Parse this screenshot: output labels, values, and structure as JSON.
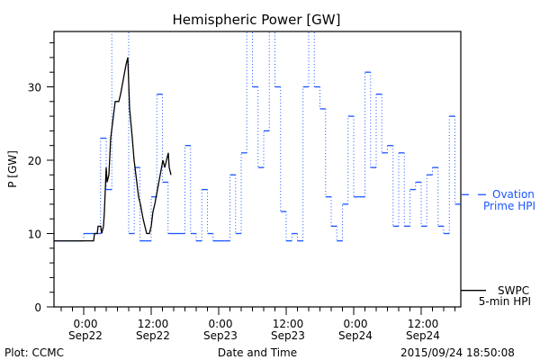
{
  "chart_data": {
    "type": "line",
    "title": "Hemispheric Power [GW]",
    "xlabel": "Date and Time",
    "ylabel": "P [GW]",
    "x_units": "hours since 2015-09-22 00:00",
    "xlim": [
      -5.6,
      67
    ],
    "ylim": [
      0,
      37.5
    ],
    "grid": false,
    "y_ticks": [
      0,
      10,
      20,
      30
    ],
    "y_minor_step": 2,
    "x_ticks": [
      {
        "hour": 0,
        "time": "0:00",
        "date": "Sep22"
      },
      {
        "hour": 12,
        "time": "12:00",
        "date": "Sep22"
      },
      {
        "hour": 24,
        "time": "0:00",
        "date": "Sep23"
      },
      {
        "hour": 36,
        "time": "12:00",
        "date": "Sep23"
      },
      {
        "hour": 48,
        "time": "0:00",
        "date": "Sep24"
      },
      {
        "hour": 60,
        "time": "12:00",
        "date": "Sep24"
      }
    ],
    "x_minor_step": 2,
    "series": [
      {
        "name": "Ovation Prime HPI",
        "legend": [
          "Ovation",
          "Prime HPI"
        ],
        "color": "#1a55ff",
        "style": "hourly-step-dotted",
        "start_hour": -6,
        "values": [
          9,
          9,
          9,
          9,
          9,
          9,
          10,
          10,
          10,
          23,
          16,
          40,
          40,
          40,
          10,
          19,
          9,
          9,
          15,
          29,
          17,
          10,
          10,
          10,
          22,
          10,
          9,
          16,
          10,
          9,
          9,
          9,
          18,
          10,
          21,
          40,
          30,
          19,
          24,
          40,
          30,
          13,
          9,
          10,
          9,
          30,
          40,
          30,
          27,
          15,
          11,
          9,
          14,
          26,
          15,
          15,
          32,
          19,
          29,
          21,
          22,
          11,
          21,
          11,
          16,
          17,
          11,
          18,
          19,
          11,
          10,
          26,
          14
        ],
        "latest_value": 15.3
      },
      {
        "name": "SWPC 5-min HPI",
        "legend": [
          "SWPC",
          "5-min HPI"
        ],
        "color": "#000000",
        "style": "line",
        "x": [
          -5.6,
          1.76,
          1.92,
          2.4,
          2.56,
          3.04,
          3.2,
          3.52,
          3.68,
          4.0,
          4.16,
          4.48,
          4.8,
          5.12,
          5.6,
          6.24,
          6.56,
          7.04,
          7.52,
          7.84,
          8.16,
          8.64,
          8.96,
          9.44,
          9.76,
          10.08,
          10.56,
          10.88,
          11.2,
          11.68,
          12.0,
          12.32,
          12.64,
          13.12,
          13.6,
          14.08,
          14.4,
          14.72,
          15.04,
          15.2,
          15.52
        ],
        "y": [
          9,
          9,
          10,
          10,
          11,
          11,
          10,
          11,
          13,
          19,
          17,
          18,
          23,
          25,
          28,
          28,
          29,
          31,
          33,
          34,
          27,
          23,
          20,
          17,
          15,
          14,
          12,
          11,
          10,
          10,
          11,
          13,
          14,
          16,
          18,
          20,
          19,
          20,
          21,
          19,
          18
        ],
        "latest_value": 2
      }
    ]
  },
  "footer": {
    "credit": "Plot: CCMC",
    "timestamp": "2015/09/24 18:50:08"
  }
}
